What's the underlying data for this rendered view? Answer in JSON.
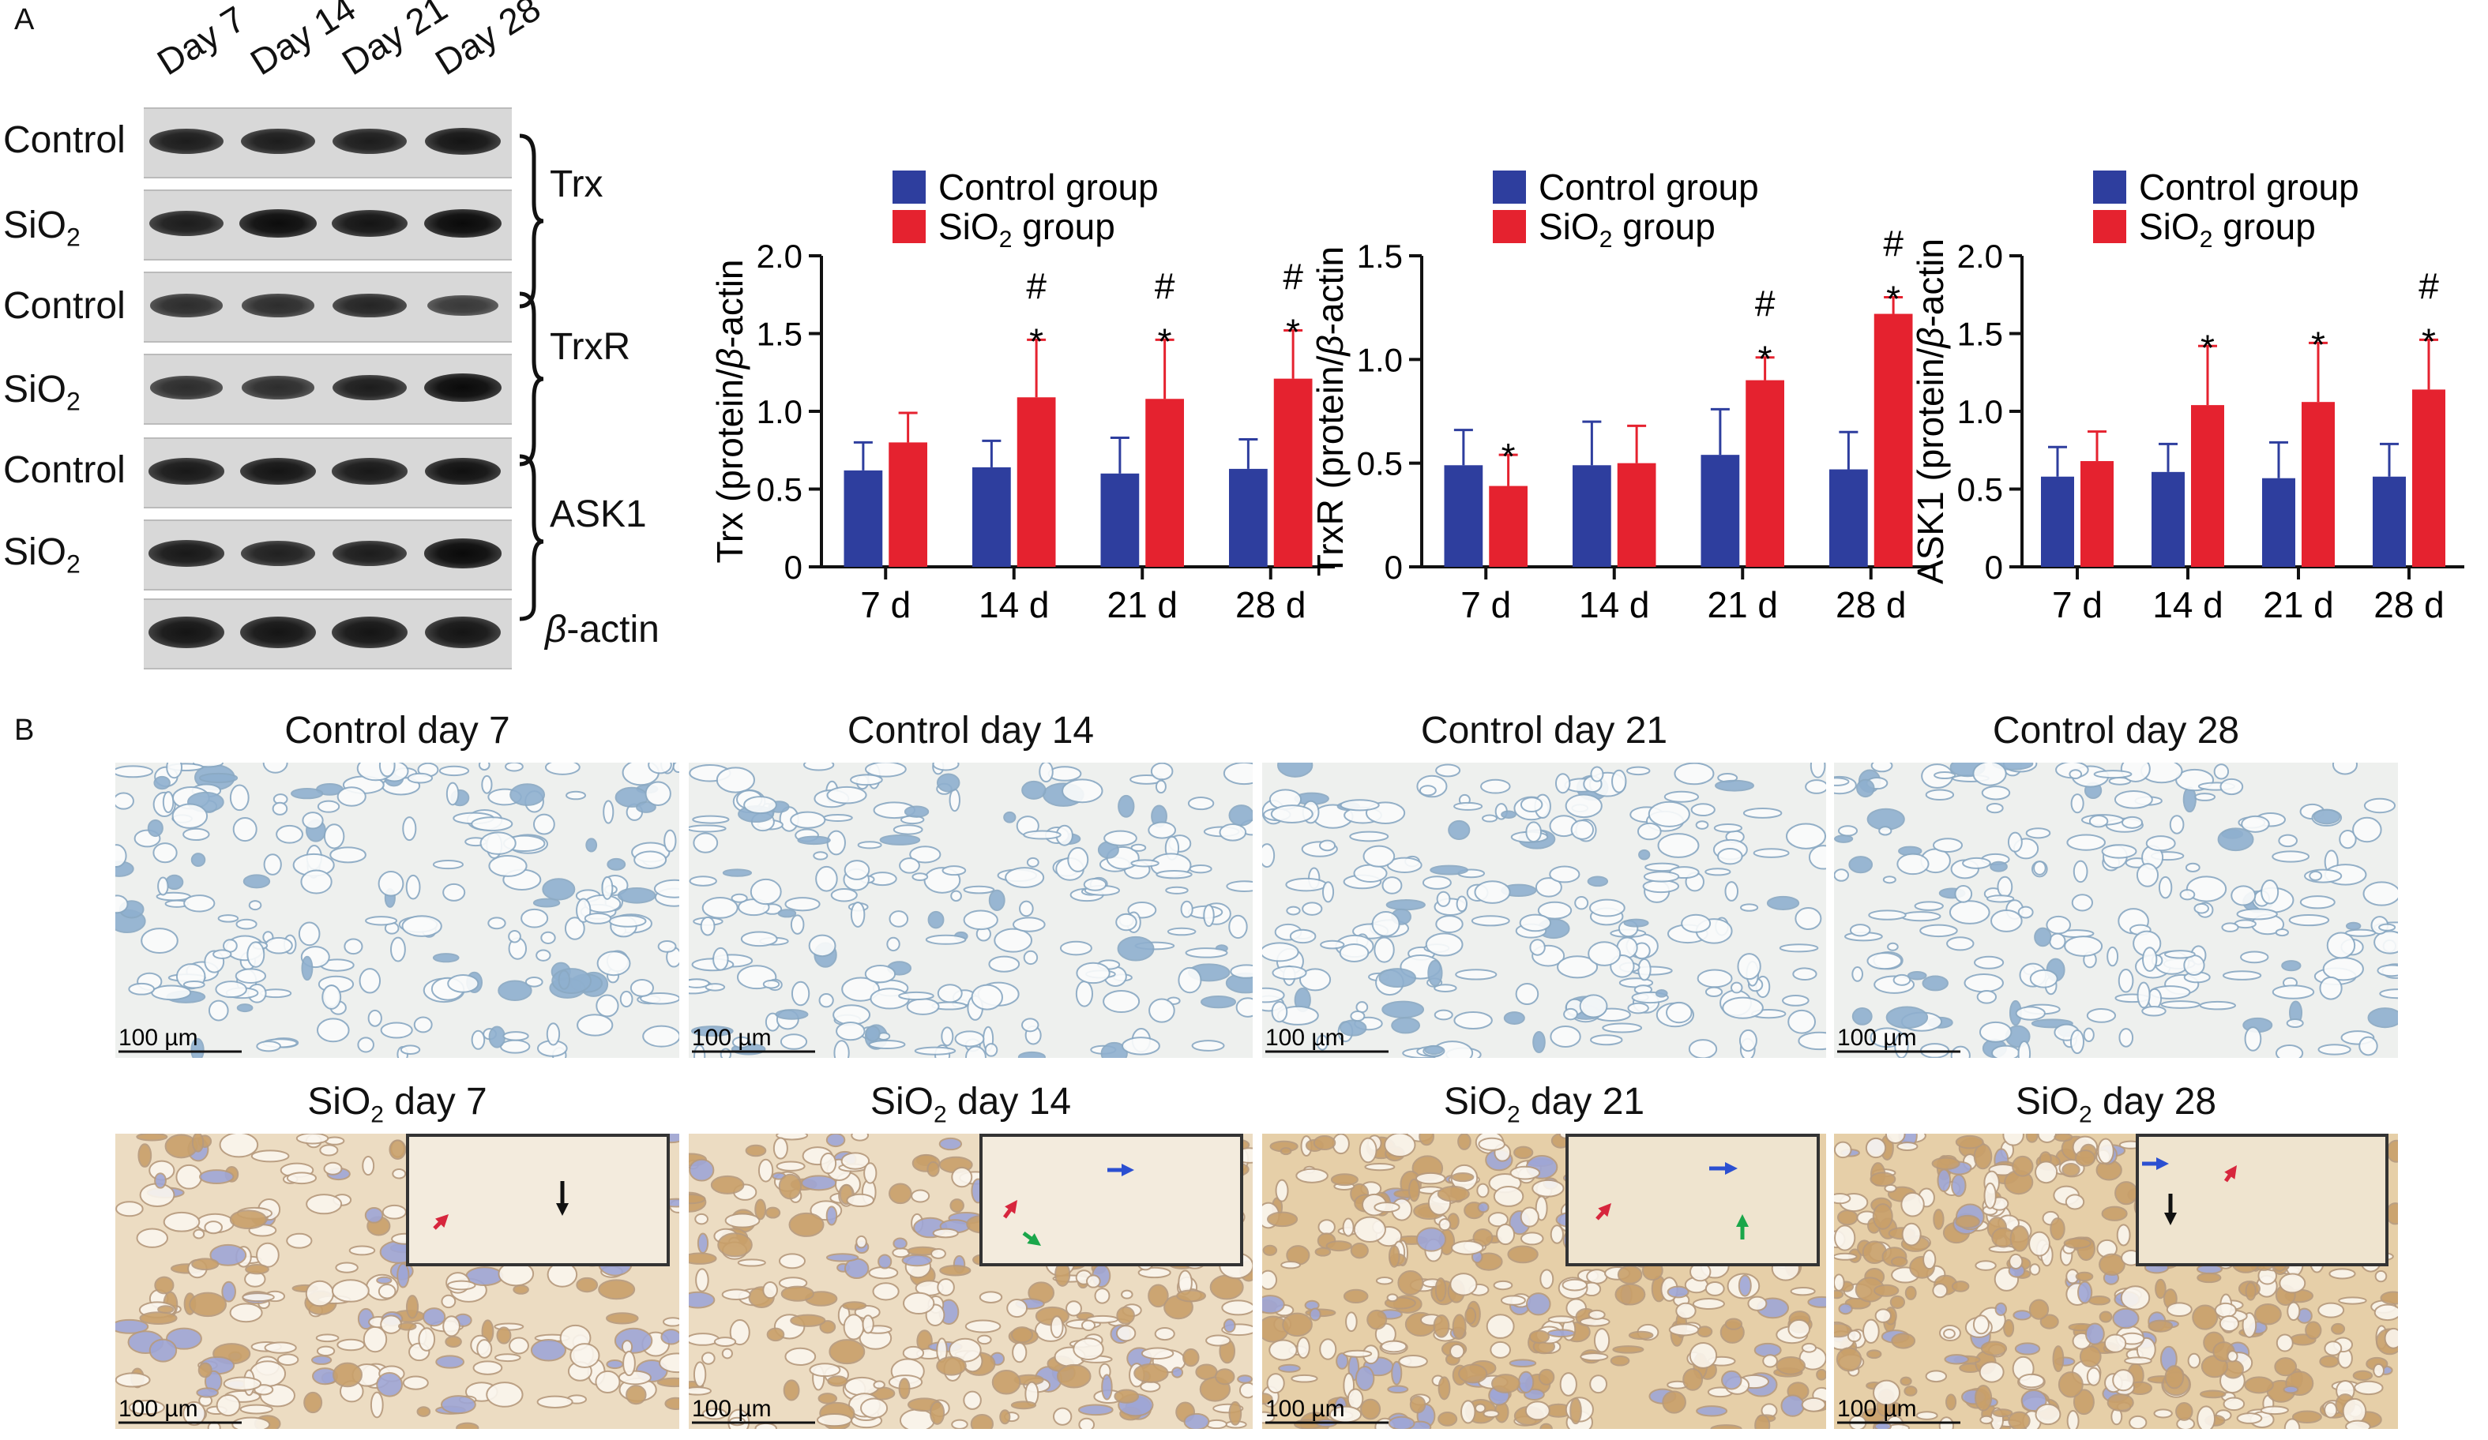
{
  "panel_a": {
    "letter": "A",
    "lanes": [
      "Day 7",
      "Day 14",
      "Day 21",
      "Day 28"
    ],
    "rows": [
      {
        "label": "Control",
        "label_sub": ""
      },
      {
        "label": "SiO",
        "label_sub": "2"
      },
      {
        "label": "Control",
        "label_sub": ""
      },
      {
        "label": "SiO",
        "label_sub": "2"
      },
      {
        "label": "Control",
        "label_sub": ""
      },
      {
        "label": "SiO",
        "label_sub": "2"
      }
    ],
    "proteins": [
      "Trx",
      "TrxR",
      "ASK1"
    ],
    "beta_actin": {
      "greek": "β",
      "rest": "-actin"
    },
    "band_intensity": [
      [
        0.9,
        0.9,
        0.9,
        1.0
      ],
      [
        0.9,
        1.1,
        1.0,
        1.15
      ],
      [
        0.7,
        0.7,
        0.8,
        0.55
      ],
      [
        0.7,
        0.7,
        0.9,
        1.15
      ],
      [
        0.95,
        1.0,
        0.95,
        1.05
      ],
      [
        0.95,
        0.85,
        0.9,
        1.2
      ],
      [
        1.0,
        1.0,
        1.0,
        1.0
      ]
    ]
  },
  "legend": {
    "control": "Control group",
    "sio2_main": "SiO",
    "sio2_sub": "2",
    "sio2_rest": " group",
    "control_color": "#2e3e9e",
    "sio2_color": "#e5222f"
  },
  "chart_data": [
    {
      "type": "bar",
      "categories": [
        "7 d",
        "14 d",
        "21 d",
        "28 d"
      ],
      "ylabel_prefix": "Trx (protein/",
      "ylabel_greek": "β",
      "ylabel_suffix": "-actin",
      "ylim": [
        0,
        2.0
      ],
      "yticks": [
        "0",
        "0.5",
        "1.0",
        "1.5",
        "2.0"
      ],
      "series": [
        {
          "name": "Control group",
          "values": [
            0.62,
            0.64,
            0.6,
            0.63
          ],
          "errors": [
            0.18,
            0.17,
            0.23,
            0.19
          ]
        },
        {
          "name": "SiO2 group",
          "values": [
            0.8,
            1.09,
            1.08,
            1.21
          ],
          "errors": [
            0.19,
            0.37,
            0.38,
            0.31
          ]
        }
      ],
      "annotations": [
        {
          "category": "14 d",
          "marks": [
            "#",
            "*"
          ]
        },
        {
          "category": "21 d",
          "marks": [
            "#",
            "*"
          ]
        },
        {
          "category": "28 d",
          "marks": [
            "#",
            "*"
          ]
        }
      ]
    },
    {
      "type": "bar",
      "categories": [
        "7 d",
        "14 d",
        "21 d",
        "28 d"
      ],
      "ylabel_prefix": "TrxR (protein/",
      "ylabel_greek": "β",
      "ylabel_suffix": "-actin",
      "ylim": [
        0,
        1.5
      ],
      "yticks": [
        "0",
        "0.5",
        "1.0",
        "1.5"
      ],
      "series": [
        {
          "name": "Control group",
          "values": [
            0.49,
            0.49,
            0.54,
            0.47
          ],
          "errors": [
            0.17,
            0.21,
            0.22,
            0.18
          ]
        },
        {
          "name": "SiO2 group",
          "values": [
            0.39,
            0.5,
            0.9,
            1.22
          ],
          "errors": [
            0.15,
            0.18,
            0.11,
            0.08
          ]
        }
      ],
      "annotations": [
        {
          "category": "7 d",
          "marks": [
            "*"
          ]
        },
        {
          "category": "21 d",
          "marks": [
            "#",
            "*"
          ]
        },
        {
          "category": "28 d",
          "marks": [
            "#",
            "*"
          ]
        }
      ]
    },
    {
      "type": "bar",
      "categories": [
        "7 d",
        "14 d",
        "21 d",
        "28 d"
      ],
      "ylabel_prefix": "ASK1 (protein/",
      "ylabel_greek": "β",
      "ylabel_suffix": "-actin",
      "ylim": [
        0,
        2.0
      ],
      "yticks": [
        "0",
        "0.5",
        "1.0",
        "1.5",
        "2.0"
      ],
      "series": [
        {
          "name": "Control group",
          "values": [
            0.58,
            0.61,
            0.57,
            0.58
          ],
          "errors": [
            0.19,
            0.18,
            0.23,
            0.21
          ]
        },
        {
          "name": "SiO2 group",
          "values": [
            0.68,
            1.04,
            1.06,
            1.14
          ],
          "errors": [
            0.19,
            0.38,
            0.38,
            0.32
          ]
        }
      ],
      "annotations": [
        {
          "category": "14 d",
          "marks": [
            "*"
          ]
        },
        {
          "category": "21 d",
          "marks": [
            "*"
          ]
        },
        {
          "category": "28 d",
          "marks": [
            "#",
            "*"
          ]
        }
      ]
    }
  ],
  "panel_b": {
    "letter": "B",
    "control_titles": [
      "Control day 7",
      "Control day 14",
      "Control day 21",
      "Control day 28"
    ],
    "sio2_titles": [
      {
        "main": "SiO",
        "sub": "2",
        "rest": " day 7"
      },
      {
        "main": "SiO",
        "sub": "2",
        "rest": " day 14"
      },
      {
        "main": "SiO",
        "sub": "2",
        "rest": " day 21"
      },
      {
        "main": "SiO",
        "sub": "2",
        "rest": " day 28"
      }
    ],
    "scale_label": "100 µm",
    "arrow_colors": {
      "red": "#d7263d",
      "black": "#111111",
      "blue": "#2b4fd1",
      "green": "#1aa64a"
    }
  }
}
